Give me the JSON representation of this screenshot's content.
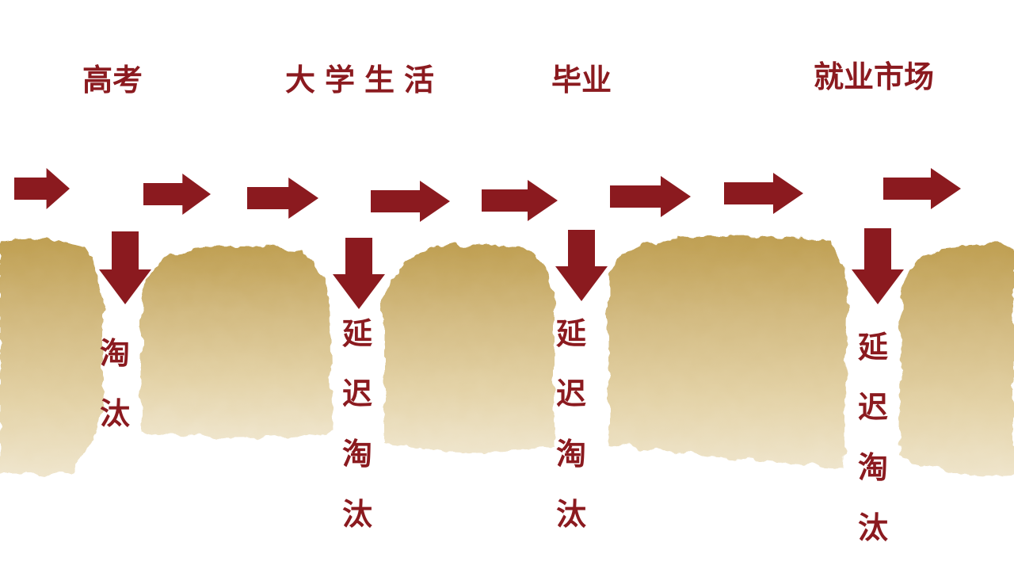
{
  "stages": [
    {
      "label": "高考"
    },
    {
      "label": "大学生活"
    },
    {
      "label": "毕业"
    },
    {
      "label": "就业市场"
    }
  ],
  "drop_labels": [
    {
      "text": "淘汰"
    },
    {
      "text": "延迟淘汰"
    },
    {
      "text": "延迟淘汰"
    },
    {
      "text": "延迟淘汰"
    }
  ],
  "colors": {
    "arrow": "#8b1a1f",
    "text": "#8b1a1f",
    "block_dark": "#c0a257",
    "block_mid": "#d6c08a",
    "block_light": "#ece0c2"
  }
}
